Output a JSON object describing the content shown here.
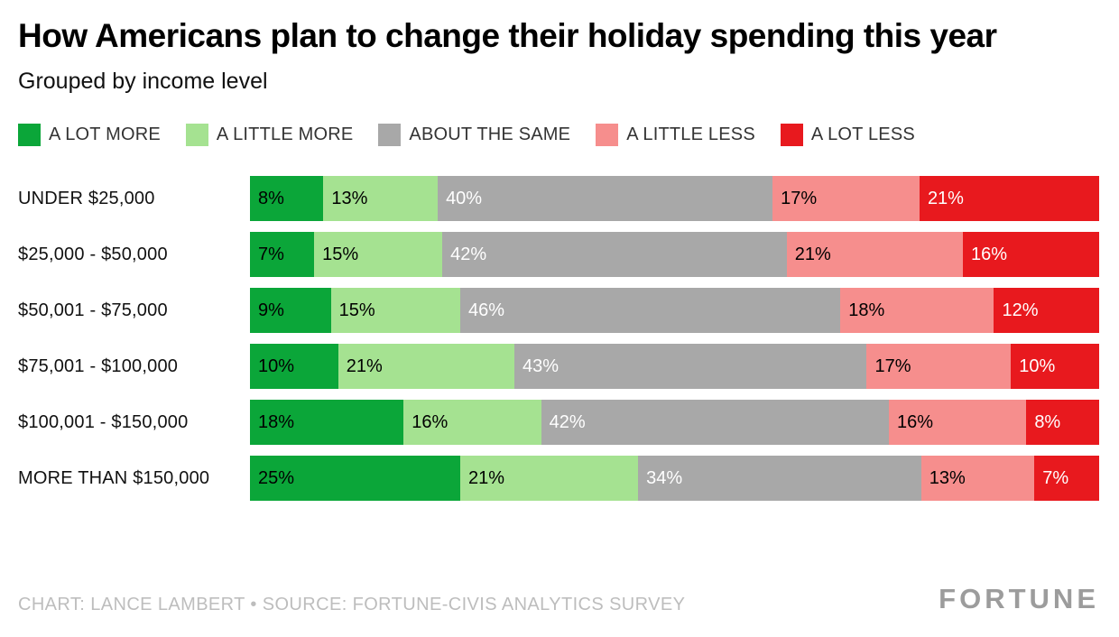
{
  "header": {
    "title": "How Americans plan to change their holiday spending this year",
    "subtitle": "Grouped by income level"
  },
  "chart_data": {
    "type": "bar",
    "variant": "horizontal-stacked",
    "value_format": "percent",
    "legend_position": "top",
    "grid": false,
    "categories": [
      "UNDER $25,000",
      "$25,000 - $50,000",
      "$50,001 - $75,000",
      "$75,001 - $100,000",
      "$100,001 - $150,000",
      "MORE THAN $150,000"
    ],
    "series": [
      {
        "name": "A LOT MORE",
        "color": "#0ba639",
        "text_color": "#000000",
        "values": [
          8,
          7,
          9,
          10,
          18,
          25
        ]
      },
      {
        "name": "A LITTLE MORE",
        "color": "#a5e291",
        "text_color": "#000000",
        "values": [
          13,
          15,
          15,
          21,
          16,
          21
        ]
      },
      {
        "name": "ABOUT THE SAME",
        "color": "#a8a8a8",
        "text_color": "#ffffff",
        "values": [
          40,
          42,
          46,
          43,
          42,
          34
        ]
      },
      {
        "name": "A LITTLE LESS",
        "color": "#f68e8d",
        "text_color": "#000000",
        "values": [
          17,
          21,
          18,
          17,
          16,
          13
        ]
      },
      {
        "name": "A LOT LESS",
        "color": "#e8191e",
        "text_color": "#ffffff",
        "values": [
          21,
          16,
          12,
          10,
          8,
          7
        ]
      }
    ]
  },
  "footer": {
    "credit": "CHART: LANCE LAMBERT • SOURCE: FORTUNE-CIVIS ANALYTICS SURVEY",
    "logo": "FORTUNE"
  }
}
